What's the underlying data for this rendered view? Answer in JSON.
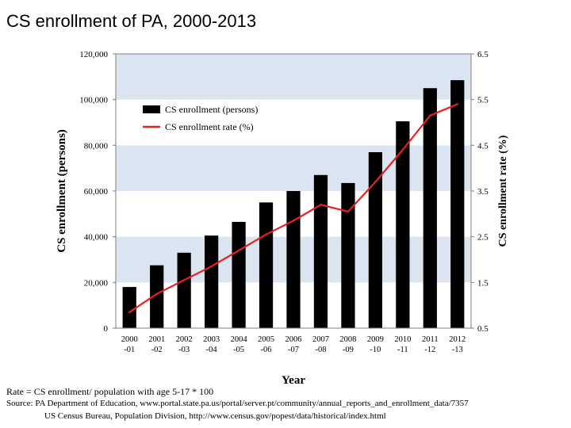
{
  "slide": {
    "title": "CS enrollment of PA, 2000-2013"
  },
  "chart_data": {
    "type": "bar",
    "title": "",
    "xlabel": "Year",
    "ylabel": "CS enrollment (persons)",
    "y2label": "CS enrollment rate (%)",
    "categories": [
      [
        "2000",
        "-01"
      ],
      [
        "2001",
        "-02"
      ],
      [
        "2002",
        "-03"
      ],
      [
        "2003",
        "-04"
      ],
      [
        "2004",
        "-05"
      ],
      [
        "2005",
        "-06"
      ],
      [
        "2006",
        "-07"
      ],
      [
        "2007",
        "-08"
      ],
      [
        "2008",
        "-09"
      ],
      [
        "2009",
        "-10"
      ],
      [
        "2010",
        "-11"
      ],
      [
        "2011",
        "-12"
      ],
      [
        "2012",
        "-13"
      ]
    ],
    "ylim": [
      0,
      120000
    ],
    "yticks": [
      0,
      20000,
      40000,
      60000,
      80000,
      100000,
      120000
    ],
    "ytick_labels": [
      "0",
      "20,000",
      "40,000",
      "60,000",
      "80,000",
      "100,000",
      "120,000"
    ],
    "y2lim": [
      0.5,
      6.5
    ],
    "y2ticks": [
      0.5,
      1.5,
      2.5,
      3.5,
      4.5,
      5.5,
      6.5
    ],
    "y2tick_labels": [
      "0.5",
      "1.5",
      "2.5",
      "3.5",
      "4.5",
      "5.5",
      "6.5"
    ],
    "series": [
      {
        "name": "CS enrollment (persons)",
        "type": "bar",
        "axis": "left",
        "color": "#000000",
        "values": [
          18000,
          27500,
          33000,
          40500,
          46500,
          55000,
          60000,
          67000,
          63500,
          77000,
          90500,
          105000,
          108500
        ]
      },
      {
        "name": "CS enrollment rate (%)",
        "type": "line",
        "axis": "right",
        "color": "#e8201f",
        "values": [
          0.85,
          1.25,
          1.55,
          1.85,
          2.2,
          2.55,
          2.85,
          3.2,
          3.05,
          3.7,
          4.4,
          5.15,
          5.4
        ]
      }
    ],
    "legend_position": "top-left",
    "background_bands": [
      "#dbe5f1",
      "#ffffff"
    ]
  },
  "notes": {
    "rate": "Rate = CS enrollment/ population with age 5-17 * 100",
    "source1": "Source: PA Department of Education, www.portal.state.pa.us/portal/server.pt/community/annual_reports_and_enrollment_data/7357",
    "source2": "US Census Bureau, Population Division, http://www.census.gov/popest/data/historical/index.html"
  }
}
